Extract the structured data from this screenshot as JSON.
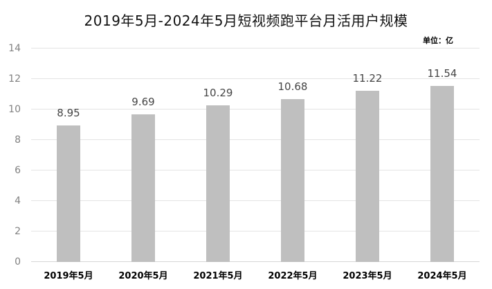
{
  "title": "2019年5月-2024年5月短视频跑平台月活用户规模",
  "unit_label": "单位：亿",
  "chart_data": {
    "type": "bar",
    "title": "2019年5月-2024年5月短视频跑平台月活用户规模",
    "unit": "单位：亿",
    "categories": [
      "2019年5月",
      "2020年5月",
      "2021年5月",
      "2022年5月",
      "2023年5月",
      "2024年5月"
    ],
    "values": [
      8.95,
      9.69,
      10.29,
      10.68,
      11.22,
      11.54
    ],
    "value_labels": [
      "8.95",
      "9.69",
      "10.29",
      "10.68",
      "11.22",
      "11.54"
    ],
    "xlabel": "",
    "ylabel": "",
    "ylim": [
      0,
      14
    ],
    "yticks": [
      0,
      2,
      4,
      6,
      8,
      10,
      12,
      14
    ],
    "grid": true,
    "legend": "none",
    "colors": {
      "bar": "#BFBFBF",
      "gridline": "#E4E4E4",
      "baseline": "#D6D6D6",
      "y_tick_label": "#808080",
      "x_tick_label": "#000000",
      "data_label": "#444444",
      "title": "#111111",
      "background": "#FFFFFF"
    }
  }
}
